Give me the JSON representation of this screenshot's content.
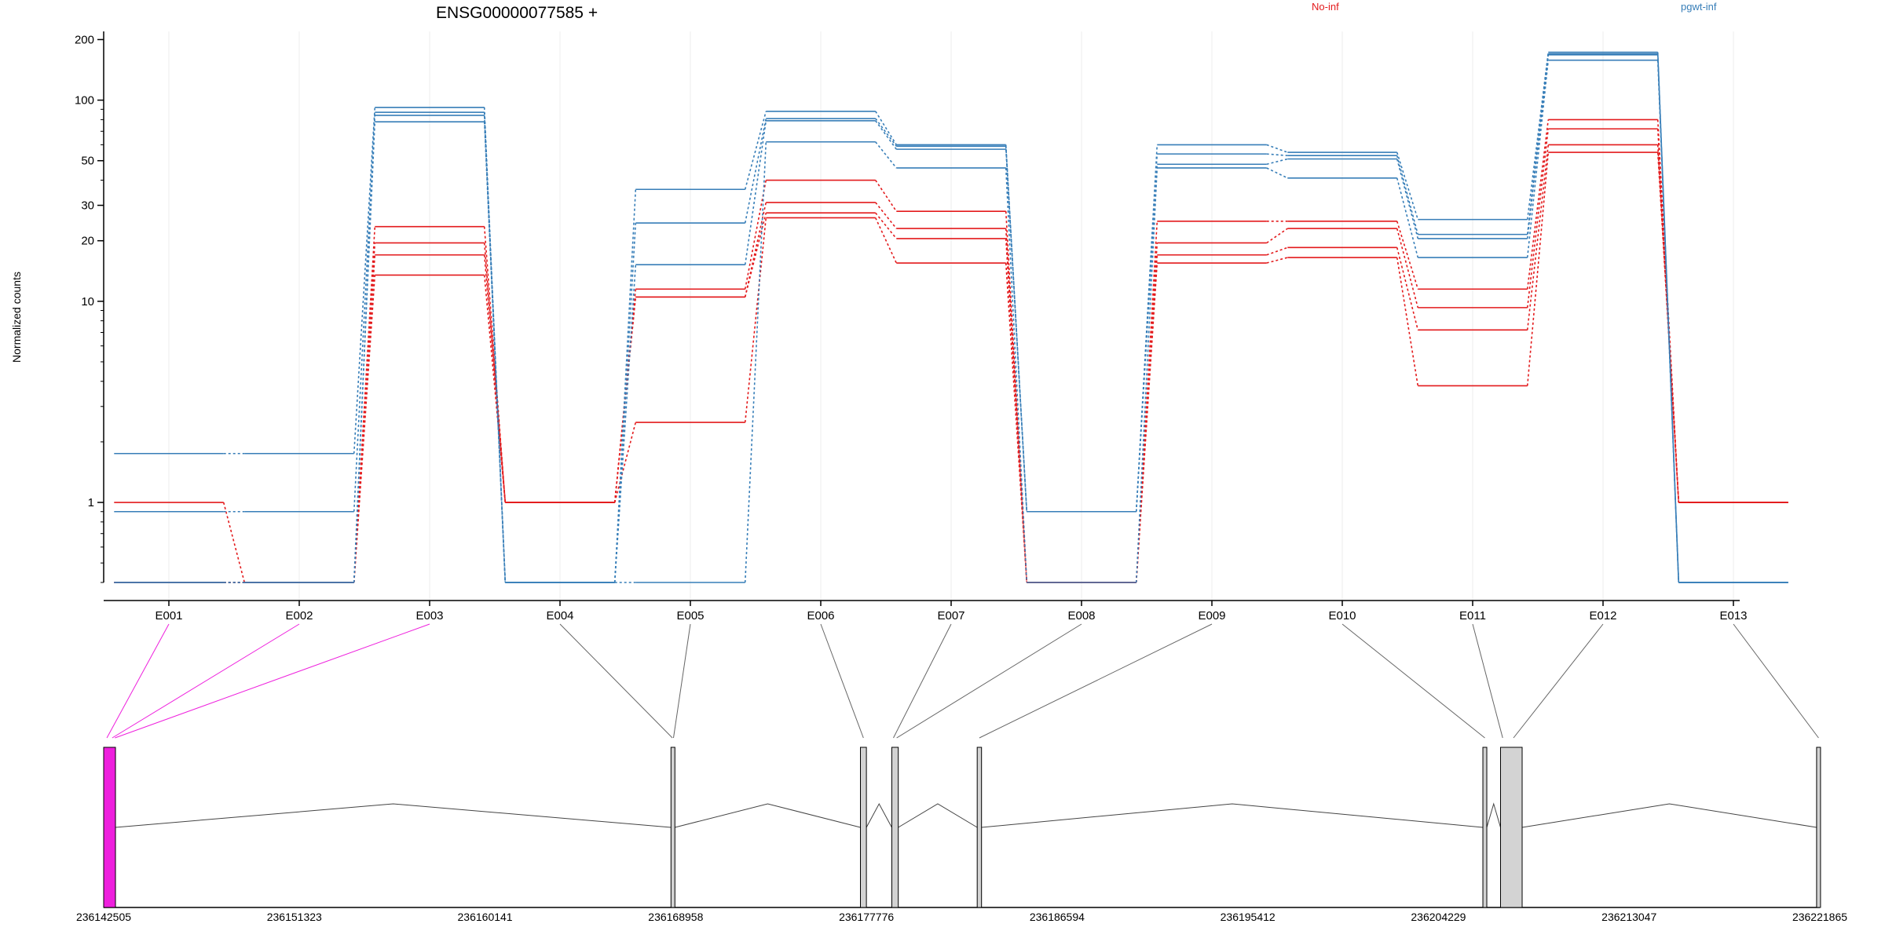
{
  "chart_data": {
    "type": "line",
    "title": "ENSG00000077585 +",
    "ylabel": "Normalized counts",
    "yscale": "log",
    "ylim": [
      0.4,
      210
    ],
    "yticks": [
      {
        "value": 200,
        "label": "200"
      },
      {
        "value": 100,
        "label": "100"
      },
      {
        "value": 50,
        "label": "50"
      },
      {
        "value": 30,
        "label": "30"
      },
      {
        "value": 20,
        "label": "20"
      },
      {
        "value": 10,
        "label": "10"
      },
      {
        "value": 1,
        "label": "1"
      }
    ],
    "categories": [
      "E001",
      "E002",
      "E003",
      "E004",
      "E005",
      "E006",
      "E007",
      "E008",
      "E009",
      "E010",
      "E011",
      "E012",
      "E013"
    ],
    "legend": [
      {
        "label": "No-inf",
        "color": "#e31a1c"
      },
      {
        "label": "pgwt-inf",
        "color": "#377eb8"
      }
    ],
    "series": [
      {
        "group": "No-inf",
        "values": [
          1.0,
          0.4,
          23.5,
          1.0,
          11.5,
          40,
          28,
          0.4,
          25,
          25,
          11.5,
          80,
          1.0
        ]
      },
      {
        "group": "No-inf",
        "values": [
          0.4,
          0.4,
          19.5,
          1.0,
          10.5,
          31,
          23,
          0.4,
          19.5,
          23,
          9.3,
          72,
          1.0
        ]
      },
      {
        "group": "No-inf",
        "values": [
          0.4,
          0.4,
          17,
          1.0,
          10.5,
          27.5,
          20.5,
          0.4,
          17,
          18.5,
          7.2,
          60,
          1.0
        ]
      },
      {
        "group": "No-inf",
        "values": [
          0.4,
          0.4,
          13.5,
          1.0,
          2.5,
          26,
          15.5,
          0.4,
          15.5,
          16.5,
          3.8,
          55,
          1.0
        ]
      },
      {
        "group": "pgwt-inf",
        "values": [
          1.75,
          1.75,
          92,
          0.4,
          36,
          88,
          60,
          0.9,
          60,
          55,
          25.5,
          173,
          0.4
        ]
      },
      {
        "group": "pgwt-inf",
        "values": [
          0.9,
          0.9,
          87,
          0.4,
          24.5,
          81,
          59,
          0.9,
          54,
          53,
          21.5,
          170,
          0.4
        ]
      },
      {
        "group": "pgwt-inf",
        "values": [
          0.4,
          0.4,
          84,
          0.4,
          15.2,
          79,
          57,
          0.9,
          48,
          51,
          20.5,
          168,
          0.4
        ]
      },
      {
        "group": "pgwt-inf",
        "values": [
          0.4,
          0.4,
          78,
          0.4,
          0.4,
          62,
          46,
          0.4,
          46,
          41,
          16.5,
          158,
          0.4
        ]
      }
    ],
    "gene_model": {
      "coordinate_labels": [
        "236142505",
        "236151323",
        "236160141",
        "236168958",
        "236177776",
        "236186594",
        "236195412",
        "236204229",
        "236213047",
        "236221865"
      ],
      "exons": [
        {
          "id": "E001",
          "start": 236142505,
          "end": 236142800,
          "highlighted": true
        },
        {
          "id": "E002",
          "start": 236142800,
          "end": 236143000,
          "highlighted": true
        },
        {
          "id": "E003",
          "start": 236143000,
          "end": 236143050,
          "highlighted": true
        },
        {
          "id": "E004",
          "start": 236168780,
          "end": 236168830,
          "highlighted": false
        },
        {
          "id": "E005",
          "start": 236168830,
          "end": 236168880,
          "highlighted": false
        },
        {
          "id": "E006",
          "start": 236177500,
          "end": 236177776,
          "highlighted": false
        },
        {
          "id": "E007",
          "start": 236178950,
          "end": 236179100,
          "highlighted": false
        },
        {
          "id": "E008",
          "start": 236179100,
          "end": 236179250,
          "highlighted": false
        },
        {
          "id": "E009",
          "start": 236182900,
          "end": 236183100,
          "highlighted": false
        },
        {
          "id": "E010",
          "start": 236206300,
          "end": 236206450,
          "highlighted": false
        },
        {
          "id": "E011",
          "start": 236207100,
          "end": 236207300,
          "highlighted": false
        },
        {
          "id": "E012",
          "start": 236207300,
          "end": 236208100,
          "highlighted": false
        },
        {
          "id": "E013",
          "start": 236221750,
          "end": 236221865,
          "highlighted": false
        }
      ],
      "highlight_color": "#ee1fdd"
    }
  }
}
